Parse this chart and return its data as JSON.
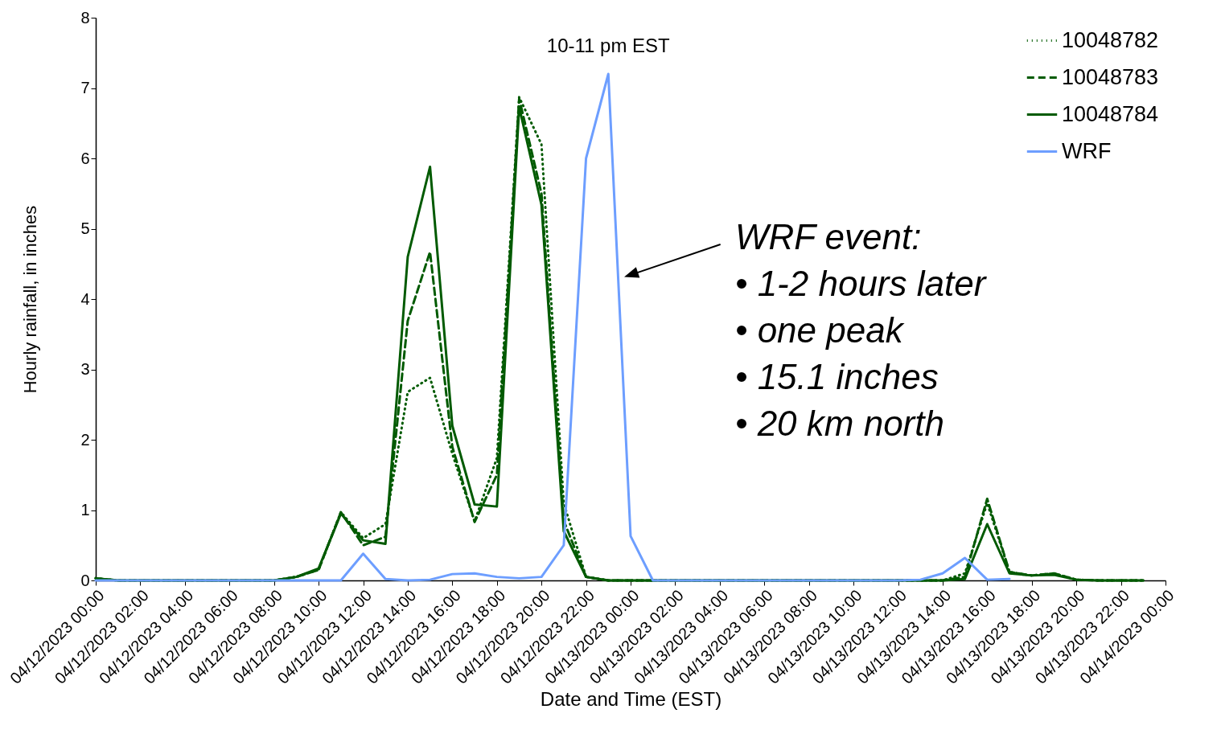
{
  "chart_data": {
    "type": "line",
    "xlabel": "Date and Time (EST)",
    "ylabel": "Hourly rainfall, in inches",
    "x": [
      "2023-04-12T00:00",
      "2023-04-12T01:00",
      "2023-04-12T02:00",
      "2023-04-12T03:00",
      "2023-04-12T04:00",
      "2023-04-12T05:00",
      "2023-04-12T06:00",
      "2023-04-12T07:00",
      "2023-04-12T08:00",
      "2023-04-12T09:00",
      "2023-04-12T10:00",
      "2023-04-12T11:00",
      "2023-04-12T12:00",
      "2023-04-12T13:00",
      "2023-04-12T14:00",
      "2023-04-12T15:00",
      "2023-04-12T16:00",
      "2023-04-12T17:00",
      "2023-04-12T18:00",
      "2023-04-12T19:00",
      "2023-04-12T20:00",
      "2023-04-12T21:00",
      "2023-04-12T22:00",
      "2023-04-12T23:00",
      "2023-04-13T00:00",
      "2023-04-13T01:00",
      "2023-04-13T02:00",
      "2023-04-13T03:00",
      "2023-04-13T04:00",
      "2023-04-13T05:00",
      "2023-04-13T06:00",
      "2023-04-13T07:00",
      "2023-04-13T08:00",
      "2023-04-13T09:00",
      "2023-04-13T10:00",
      "2023-04-13T11:00",
      "2023-04-13T12:00",
      "2023-04-13T13:00",
      "2023-04-13T14:00",
      "2023-04-13T15:00",
      "2023-04-13T16:00",
      "2023-04-13T17:00",
      "2023-04-13T18:00",
      "2023-04-13T19:00",
      "2023-04-13T20:00",
      "2023-04-13T21:00",
      "2023-04-13T22:00",
      "2023-04-13T23:00"
    ],
    "xlim": [
      "2023-04-12T00:00",
      "2023-04-14T00:00"
    ],
    "xticks": [
      {
        "value": "2023-04-12T00:00",
        "label": "04/12/2023 00:00"
      },
      {
        "value": "2023-04-12T02:00",
        "label": "04/12/2023 02:00"
      },
      {
        "value": "2023-04-12T04:00",
        "label": "04/12/2023 04:00"
      },
      {
        "value": "2023-04-12T06:00",
        "label": "04/12/2023 06:00"
      },
      {
        "value": "2023-04-12T08:00",
        "label": "04/12/2023 08:00"
      },
      {
        "value": "2023-04-12T10:00",
        "label": "04/12/2023 10:00"
      },
      {
        "value": "2023-04-12T12:00",
        "label": "04/12/2023 12:00"
      },
      {
        "value": "2023-04-12T14:00",
        "label": "04/12/2023 14:00"
      },
      {
        "value": "2023-04-12T16:00",
        "label": "04/12/2023 16:00"
      },
      {
        "value": "2023-04-12T18:00",
        "label": "04/12/2023 18:00"
      },
      {
        "value": "2023-04-12T20:00",
        "label": "04/12/2023 20:00"
      },
      {
        "value": "2023-04-12T22:00",
        "label": "04/12/2023 22:00"
      },
      {
        "value": "2023-04-13T00:00",
        "label": "04/13/2023 00:00"
      },
      {
        "value": "2023-04-13T02:00",
        "label": "04/13/2023 02:00"
      },
      {
        "value": "2023-04-13T04:00",
        "label": "04/13/2023 04:00"
      },
      {
        "value": "2023-04-13T06:00",
        "label": "04/13/2023 06:00"
      },
      {
        "value": "2023-04-13T08:00",
        "label": "04/13/2023 08:00"
      },
      {
        "value": "2023-04-13T10:00",
        "label": "04/13/2023 10:00"
      },
      {
        "value": "2023-04-13T12:00",
        "label": "04/13/2023 12:00"
      },
      {
        "value": "2023-04-13T14:00",
        "label": "04/13/2023 14:00"
      },
      {
        "value": "2023-04-13T16:00",
        "label": "04/13/2023 16:00"
      },
      {
        "value": "2023-04-13T18:00",
        "label": "04/13/2023 18:00"
      },
      {
        "value": "2023-04-13T20:00",
        "label": "04/13/2023 20:00"
      },
      {
        "value": "2023-04-13T22:00",
        "label": "04/13/2023 22:00"
      },
      {
        "value": "2023-04-14T00:00",
        "label": "04/14/2023 00:00"
      }
    ],
    "ylim": [
      0,
      8
    ],
    "yticks": [
      0,
      1,
      2,
      3,
      4,
      5,
      6,
      7,
      8
    ],
    "grid": false,
    "legend": "top right",
    "marker": "none",
    "series": [
      {
        "name": "10048782",
        "color": "#005a00",
        "line_style": "dotted",
        "values": [
          0.03,
          0,
          0,
          0,
          0,
          0,
          0,
          0,
          0,
          0.05,
          0.15,
          0.97,
          0.6,
          0.8,
          2.68,
          2.88,
          1.8,
          0.84,
          1.74,
          6.87,
          6.2,
          1.1,
          0.05,
          0,
          0,
          0,
          0,
          0,
          0,
          0,
          0,
          0,
          0,
          0,
          0,
          0,
          0,
          0,
          0,
          0.1,
          1.1,
          0.12,
          0.07,
          0.1,
          0.01,
          0,
          0,
          0
        ]
      },
      {
        "name": "10048783",
        "color": "#005a00",
        "line_style": "dashed",
        "values": [
          0.03,
          0,
          0,
          0,
          0,
          0,
          0,
          0,
          0,
          0.05,
          0.15,
          0.97,
          0.5,
          0.62,
          3.69,
          4.67,
          1.9,
          0.83,
          1.5,
          6.85,
          5.5,
          0.85,
          0.05,
          0,
          0,
          0,
          0,
          0,
          0,
          0,
          0,
          0,
          0,
          0,
          0,
          0,
          0,
          0,
          0,
          0.05,
          1.16,
          0.12,
          0.07,
          0.1,
          0.01,
          0,
          0,
          0
        ]
      },
      {
        "name": "10048784",
        "color": "#005a00",
        "line_style": "solid",
        "values": [
          0.03,
          0,
          0,
          0,
          0,
          0,
          0,
          0,
          0,
          0.05,
          0.17,
          0.95,
          0.57,
          0.52,
          4.6,
          5.88,
          2.2,
          1.08,
          1.05,
          6.73,
          5.34,
          0.7,
          0.05,
          0,
          0,
          0,
          0,
          0,
          0,
          0,
          0,
          0,
          0,
          0,
          0,
          0,
          0,
          0,
          0,
          0.02,
          0.8,
          0.1,
          0.07,
          0.08,
          0.01,
          0,
          0,
          0
        ]
      },
      {
        "name": "WRF",
        "color": "#6d9eff",
        "line_style": "solid",
        "values": [
          0,
          0,
          0,
          0,
          0,
          0,
          0,
          0,
          0,
          0,
          0,
          0,
          0.38,
          0.02,
          0,
          0.01,
          0.09,
          0.1,
          0.05,
          0.03,
          0.05,
          0.5,
          6.0,
          7.2,
          0.63,
          0,
          0,
          0,
          0,
          0,
          0,
          0,
          0,
          0,
          0,
          0,
          0,
          0.01,
          0.1,
          0.32,
          0.01,
          0.02,
          null,
          null,
          null,
          null,
          null,
          null
        ]
      }
    ],
    "annotations": [
      {
        "text": "10-11 pm EST",
        "x": "2023-04-12T23:00",
        "y": 7.2
      },
      "WRF event:",
      "• 1-2 hours later",
      "• one peak",
      "• 15.1 inches",
      "• 20 km north"
    ]
  }
}
